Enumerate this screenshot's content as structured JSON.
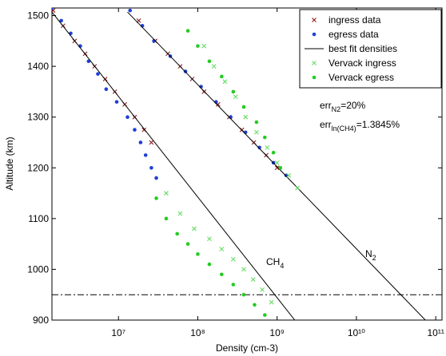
{
  "chart_data": {
    "type": "scatter",
    "xlabel": "Density (cm-3)",
    "ylabel": "Altitude (km)",
    "xscale": "log",
    "xlim": [
      1450000,
      120000000000
    ],
    "ylim": [
      900,
      1515
    ],
    "xticks": [
      {
        "value": 10000000,
        "label": "10⁷"
      },
      {
        "value": 100000000,
        "label": "10⁸"
      },
      {
        "value": 1000000000,
        "label": "10⁹"
      },
      {
        "value": 10000000000,
        "label": "10¹⁰"
      },
      {
        "value": 100000000000,
        "label": "10¹¹"
      }
    ],
    "yticks": [
      900,
      1000,
      1100,
      1200,
      1300,
      1400,
      1500
    ],
    "legend": "upper right",
    "series": [
      {
        "name": "ingress data",
        "color": "#8b1a1a",
        "marker": "x",
        "x": [
          1500000,
          2000000,
          2800000,
          3800000,
          5000000,
          6800000,
          9000000,
          12000000,
          16000000,
          21000000,
          26000000,
          18000000,
          29000000,
          42000000,
          60000000,
          85000000,
          120000000,
          180000000,
          250000000,
          360000000,
          510000000,
          730000000,
          1000000000
        ],
        "values": [
          1510,
          1480,
          1450,
          1425,
          1400,
          1375,
          1350,
          1325,
          1300,
          1275,
          1250,
          1490,
          1450,
          1425,
          1400,
          1375,
          1350,
          1325,
          1300,
          1275,
          1250,
          1225,
          1200
        ]
      },
      {
        "name": "egress data",
        "color": "#1f3fd6",
        "marker": "dot",
        "x": [
          1450000,
          1900000,
          2500000,
          3300000,
          4200000,
          5500000,
          7000000,
          9500000,
          13000000,
          16000000,
          19000000,
          22000000,
          26000000,
          30000000,
          14000000,
          20000000,
          28000000,
          45000000,
          70000000,
          110000000,
          170000000,
          260000000,
          400000000,
          600000000,
          900000000,
          1300000000
        ],
        "values": [
          1515,
          1490,
          1465,
          1440,
          1410,
          1385,
          1355,
          1330,
          1300,
          1275,
          1250,
          1225,
          1200,
          1180,
          1510,
          1480,
          1450,
          1420,
          1390,
          1360,
          1330,
          1300,
          1270,
          1240,
          1210,
          1185
        ]
      },
      {
        "name": "best fit densities",
        "color": "#000000",
        "marker": "line",
        "x": [
          1450000,
          1670000000,
          null,
          13000000,
          74000000000
        ],
        "values": [
          1507,
          900,
          null,
          1507,
          900
        ]
      },
      {
        "name": "Vervack ingress",
        "color": "#66dd66",
        "marker": "x",
        "x": [
          120000000,
          160000000,
          220000000,
          300000000,
          400000000,
          550000000,
          750000000,
          1000000000,
          1400000000,
          1800000000,
          40000000,
          60000000,
          90000000,
          140000000,
          200000000,
          280000000,
          380000000,
          500000000,
          650000000,
          850000000
        ],
        "values": [
          1440,
          1400,
          1370,
          1340,
          1300,
          1270,
          1240,
          1210,
          1185,
          1160,
          1150,
          1110,
          1080,
          1060,
          1040,
          1020,
          1000,
          980,
          960,
          935
        ]
      },
      {
        "name": "Vervack egress",
        "color": "#22cc22",
        "marker": "dot",
        "x": [
          75000000,
          100000000,
          140000000,
          200000000,
          280000000,
          380000000,
          550000000,
          700000000,
          900000000,
          1100000000,
          30000000,
          40000000,
          55000000,
          75000000,
          100000000,
          140000000,
          200000000,
          280000000,
          380000000,
          520000000,
          700000000
        ],
        "values": [
          1470,
          1440,
          1410,
          1380,
          1350,
          1320,
          1290,
          1260,
          1230,
          1200,
          1140,
          1100,
          1070,
          1050,
          1030,
          1010,
          990,
          970,
          950,
          930,
          910
        ]
      }
    ],
    "hline": 950,
    "annotations": [
      {
        "text": "err",
        "sub": "N2",
        "rest": "=20%"
      },
      {
        "text": "err",
        "sub": "ln(CH4)",
        "rest": "=1.3845%"
      },
      {
        "text": "CH",
        "sub": "4"
      },
      {
        "text": "N",
        "sub": "2"
      }
    ]
  }
}
